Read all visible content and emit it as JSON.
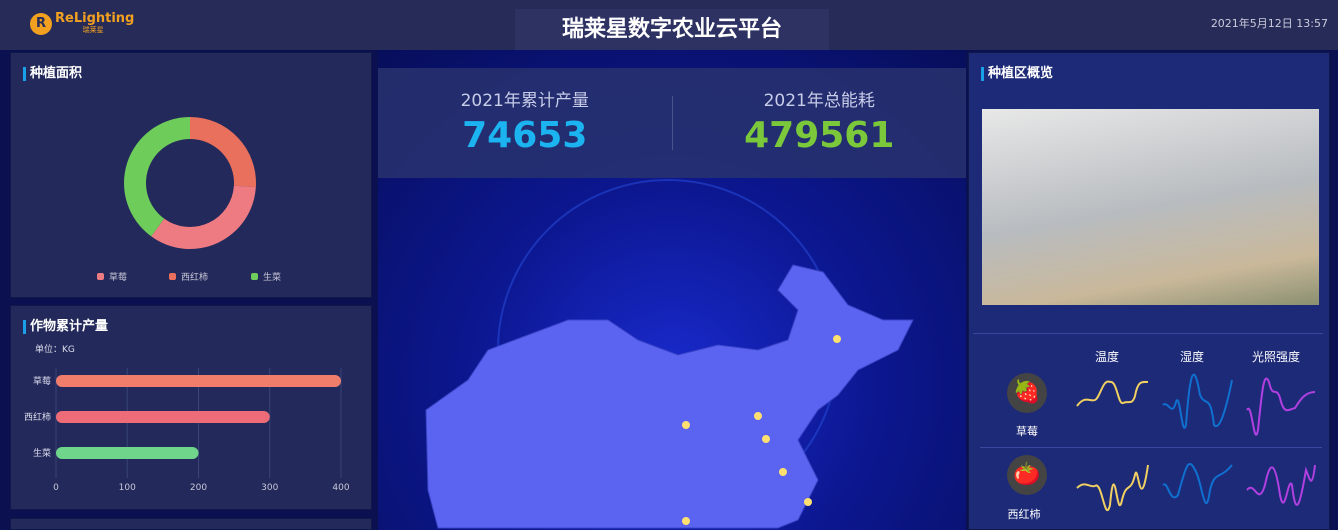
{
  "header": {
    "logo_text": "ReLighting",
    "logo_sub": "瑞莱星",
    "title": "瑞莱星数字农业云平台",
    "datetime": "2021年5月12日 13:57"
  },
  "planting_area": {
    "title": "种植面积",
    "chart_data": {
      "type": "pie",
      "donut": true,
      "categories": [
        "草莓",
        "西红柿",
        "生菜"
      ],
      "values": [
        26,
        34,
        40
      ],
      "colors": [
        "#e8705c",
        "#ef7b82",
        "#6dcc5a"
      ],
      "legend": "bottom"
    }
  },
  "yield": {
    "title": "作物累计产量",
    "unit": "单位：KG",
    "chart_data": {
      "type": "bar",
      "orientation": "horizontal",
      "categories": [
        "草莓",
        "西红柿",
        "生菜"
      ],
      "values": [
        400,
        300,
        200
      ],
      "xlim": [
        0,
        400
      ],
      "xticks": [
        "0",
        "100",
        "200",
        "300",
        "400"
      ],
      "colors": [
        "#f07d6c",
        "#ee6c78",
        "#6ed58a"
      ],
      "grid": true
    }
  },
  "stats": [
    {
      "label": "2021年累计产量",
      "value": "74653",
      "color": "#1bb4f0"
    },
    {
      "label": "2021年总能耗",
      "value": "479561",
      "color": "#7bc93a"
    }
  ],
  "overview": {
    "title": "种植区概览",
    "columns": [
      "温度",
      "湿度",
      "光照强度"
    ],
    "crops": [
      {
        "name": "草莓",
        "icon": "strawberry-icon",
        "glyph": "🍓"
      },
      {
        "name": "西红柿",
        "icon": "tomato-icon",
        "glyph": "🍅"
      }
    ]
  }
}
